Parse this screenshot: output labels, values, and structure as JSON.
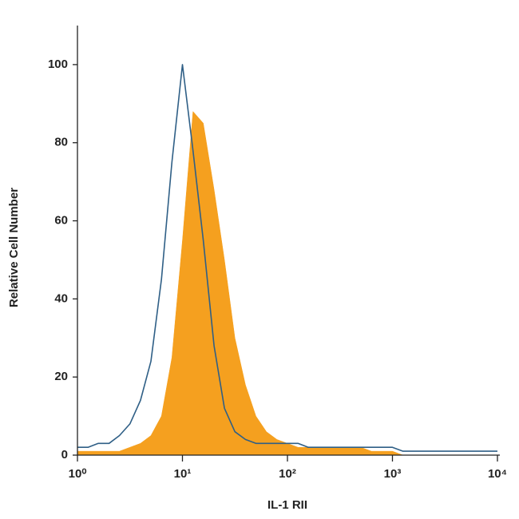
{
  "chart_data": {
    "type": "area",
    "x_label": "IL-1 RII",
    "y_label": "Relative Cell Number",
    "x_log": true,
    "x": [
      1,
      1.26,
      1.58,
      2,
      2.51,
      3.16,
      3.98,
      5.01,
      6.31,
      7.94,
      10,
      12.6,
      15.8,
      20,
      25.1,
      31.6,
      39.8,
      50.1,
      63.1,
      79.4,
      100,
      126,
      158,
      200,
      251,
      316,
      398,
      501,
      631,
      794,
      1000,
      1259,
      1585,
      1995,
      2512,
      3162,
      3981,
      5012,
      6310,
      7943,
      10000
    ],
    "series": [
      {
        "color": "#f5a01f",
        "filled": true,
        "values": [
          1,
          1,
          1,
          1,
          1,
          2,
          3,
          5,
          10,
          25,
          55,
          88,
          85,
          68,
          50,
          30,
          18,
          10,
          6,
          4,
          3,
          2,
          2,
          2,
          2,
          2,
          2,
          2,
          1,
          1,
          1,
          0,
          0,
          0,
          0,
          0,
          0,
          0,
          0,
          0,
          0
        ]
      },
      {
        "color": "#2f5f86",
        "filled": false,
        "values": [
          2,
          2,
          3,
          3,
          5,
          8,
          14,
          24,
          45,
          75,
          100,
          78,
          55,
          28,
          12,
          6,
          4,
          3,
          3,
          3,
          3,
          3,
          2,
          2,
          2,
          2,
          2,
          2,
          2,
          2,
          2,
          1,
          1,
          1,
          1,
          1,
          1,
          1,
          1,
          1,
          1
        ]
      }
    ],
    "xlim": [
      1,
      10000
    ],
    "xticks": [
      {
        "value": 1,
        "label": "10⁰"
      },
      {
        "value": 10,
        "label": "10¹"
      },
      {
        "value": 100,
        "label": "10²"
      },
      {
        "value": 1000,
        "label": "10³"
      },
      {
        "value": 10000,
        "label": "10⁴"
      }
    ],
    "ylim": [
      0,
      110
    ],
    "yticks": [
      0,
      20,
      40,
      60,
      80,
      100
    ]
  }
}
